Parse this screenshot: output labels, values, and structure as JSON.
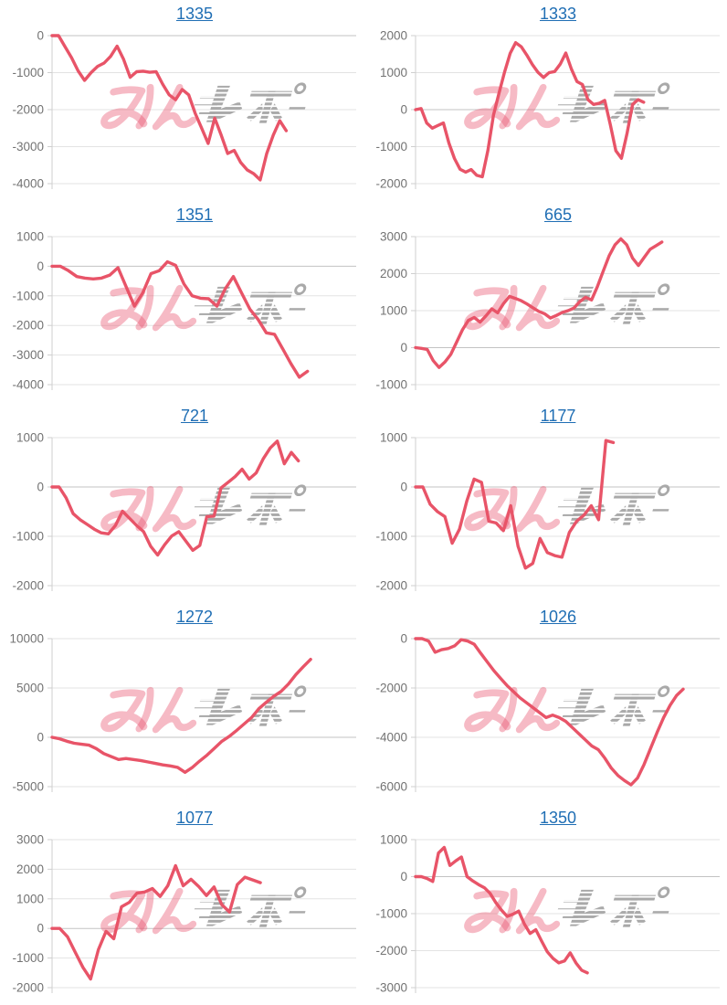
{
  "page": {
    "background": "#ffffff",
    "description": "Grid of 10 slot-machine payout line charts, each titled with a linked machine number"
  },
  "style": {
    "line_color": "#e85468",
    "title_color": "#1f6eb4",
    "tick_color": "#737373",
    "grid_color": "#e3e3e3",
    "zero_line_color": "#c3c3c3",
    "axis_color": "#cfcfcf"
  },
  "watermark": {
    "pink_text": "みん",
    "gray_text": "レポ",
    "pink_color": "rgba(232,82,110,0.4)",
    "gray_color": "#a9a9a9"
  },
  "chart_data": [
    {
      "type": "line",
      "title": "1335",
      "yticks": [
        0,
        -1000,
        -2000,
        -3000,
        -4000
      ],
      "ylim": [
        -4000,
        0
      ],
      "x_end_fraction": 0.77,
      "values": [
        0,
        0,
        -300,
        -600,
        -950,
        -1210,
        -1000,
        -830,
        -740,
        -560,
        -285,
        -640,
        -1125,
        -975,
        -960,
        -990,
        -975,
        -1310,
        -1600,
        -1730,
        -1455,
        -1600,
        -2100,
        -2500,
        -2914,
        -2230,
        -2690,
        -3185,
        -3100,
        -3430,
        -3630,
        -3730,
        -3900,
        -3190,
        -2690,
        -2300,
        -2570
      ]
    },
    {
      "type": "line",
      "title": "1333",
      "yticks": [
        2000,
        1000,
        0,
        -1000,
        -2000
      ],
      "ylim": [
        -2000,
        2000
      ],
      "x_end_fraction": 0.75,
      "values": [
        0,
        30,
        -360,
        -500,
        -430,
        -360,
        -900,
        -1320,
        -1610,
        -1690,
        -1620,
        -1775,
        -1815,
        -1100,
        -150,
        450,
        1020,
        1520,
        1810,
        1700,
        1475,
        1220,
        1010,
        870,
        1000,
        1030,
        1230,
        1530,
        1100,
        760,
        680,
        270,
        140,
        170,
        250,
        -400,
        -1110,
        -1315,
        -650,
        140,
        270,
        200
      ]
    },
    {
      "type": "line",
      "title": "1351",
      "yticks": [
        1000,
        0,
        -1000,
        -2000,
        -3000,
        -4000
      ],
      "ylim": [
        -4000,
        1000
      ],
      "x_end_fraction": 0.84,
      "values": [
        0,
        0,
        -150,
        -350,
        -400,
        -430,
        -400,
        -300,
        -50,
        -700,
        -1350,
        -900,
        -250,
        -150,
        150,
        30,
        -600,
        -1000,
        -1080,
        -1100,
        -1350,
        -770,
        -350,
        -900,
        -1450,
        -1800,
        -2250,
        -2300,
        -2800,
        -3300,
        -3750,
        -3550
      ]
    },
    {
      "type": "line",
      "title": "665",
      "yticks": [
        3000,
        2000,
        1000,
        0,
        -1000
      ],
      "ylim": [
        -1000,
        3000
      ],
      "x_end_fraction": 0.81,
      "values": [
        0,
        -20,
        -50,
        -350,
        -535,
        -390,
        -185,
        150,
        485,
        735,
        815,
        690,
        860,
        1050,
        940,
        1190,
        1385,
        1330,
        1270,
        1180,
        1080,
        980,
        915,
        800,
        870,
        950,
        1000,
        1070,
        1245,
        1360,
        1290,
        1650,
        2070,
        2480,
        2780,
        2940,
        2780,
        2420,
        2220,
        2445,
        2660,
        2755,
        2855
      ]
    },
    {
      "type": "line",
      "title": "721",
      "yticks": [
        1000,
        0,
        -1000,
        -2000
      ],
      "ylim": [
        -2000,
        1000
      ],
      "x_end_fraction": 0.81,
      "values": [
        0,
        0,
        -220,
        -540,
        -665,
        -760,
        -855,
        -930,
        -950,
        -780,
        -490,
        -635,
        -780,
        -905,
        -1200,
        -1380,
        -1170,
        -995,
        -905,
        -1095,
        -1285,
        -1185,
        -600,
        -590,
        -20,
        95,
        210,
        360,
        160,
        285,
        570,
        790,
        930,
        470,
        700,
        530
      ]
    },
    {
      "type": "line",
      "title": "1177",
      "yticks": [
        1000,
        0,
        -1000,
        -2000
      ],
      "ylim": [
        -2000,
        1000
      ],
      "x_end_fraction": 0.65,
      "values": [
        0,
        0,
        -350,
        -500,
        -600,
        -1140,
        -855,
        -285,
        160,
        95,
        -695,
        -730,
        -885,
        -380,
        -1200,
        -1645,
        -1550,
        -1045,
        -1330,
        -1390,
        -1425,
        -920,
        -695,
        -570,
        -380,
        -665,
        940,
        900
      ]
    },
    {
      "type": "line",
      "title": "1272",
      "yticks": [
        10000,
        5000,
        0,
        -5000
      ],
      "ylim": [
        -5000,
        10000
      ],
      "x_end_fraction": 0.85,
      "values": [
        0,
        -150,
        -400,
        -600,
        -700,
        -800,
        -1150,
        -1650,
        -1950,
        -2250,
        -2150,
        -2250,
        -2350,
        -2500,
        -2650,
        -2800,
        -2900,
        -3050,
        -3550,
        -3050,
        -2400,
        -1800,
        -1100,
        -400,
        100,
        700,
        1350,
        2000,
        2900,
        3550,
        4150,
        4650,
        5400,
        6350,
        7150,
        7900
      ]
    },
    {
      "type": "line",
      "title": "1026",
      "yticks": [
        0,
        -2000,
        -4000,
        -6000
      ],
      "ylim": [
        -6000,
        0
      ],
      "x_end_fraction": 0.88,
      "values": [
        0,
        0,
        -100,
        -550,
        -450,
        -400,
        -290,
        -40,
        -100,
        -230,
        -600,
        -950,
        -1300,
        -1600,
        -1900,
        -2150,
        -2400,
        -2600,
        -2800,
        -3000,
        -3200,
        -3100,
        -3200,
        -3350,
        -3600,
        -3850,
        -4100,
        -4350,
        -4500,
        -4850,
        -5250,
        -5550,
        -5750,
        -5925,
        -5650,
        -5100,
        -4450,
        -3800,
        -3200,
        -2700,
        -2300,
        -2050
      ]
    },
    {
      "type": "line",
      "title": "1077",
      "yticks": [
        3000,
        2000,
        1000,
        0,
        -1000,
        -2000
      ],
      "ylim": [
        -2000,
        3000
      ],
      "x_end_fraction": 0.685,
      "values": [
        0,
        0,
        -280,
        -800,
        -1315,
        -1710,
        -720,
        -100,
        -350,
        730,
        880,
        1190,
        1230,
        1350,
        1080,
        1440,
        2120,
        1440,
        1660,
        1420,
        1110,
        1400,
        800,
        555,
        1480,
        1730,
        1640,
        1545
      ]
    },
    {
      "type": "line",
      "title": "1350",
      "yticks": [
        1000,
        0,
        -1000,
        -2000,
        -3000
      ],
      "ylim": [
        -3000,
        1000
      ],
      "x_end_fraction": 0.565,
      "values": [
        0,
        0,
        -50,
        -130,
        640,
        790,
        300,
        425,
        530,
        0,
        -115,
        -215,
        -300,
        -450,
        -700,
        -905,
        -1075,
        -1015,
        -930,
        -1285,
        -1535,
        -1435,
        -1740,
        -2030,
        -2210,
        -2330,
        -2280,
        -2060,
        -2330,
        -2530,
        -2600
      ]
    }
  ]
}
